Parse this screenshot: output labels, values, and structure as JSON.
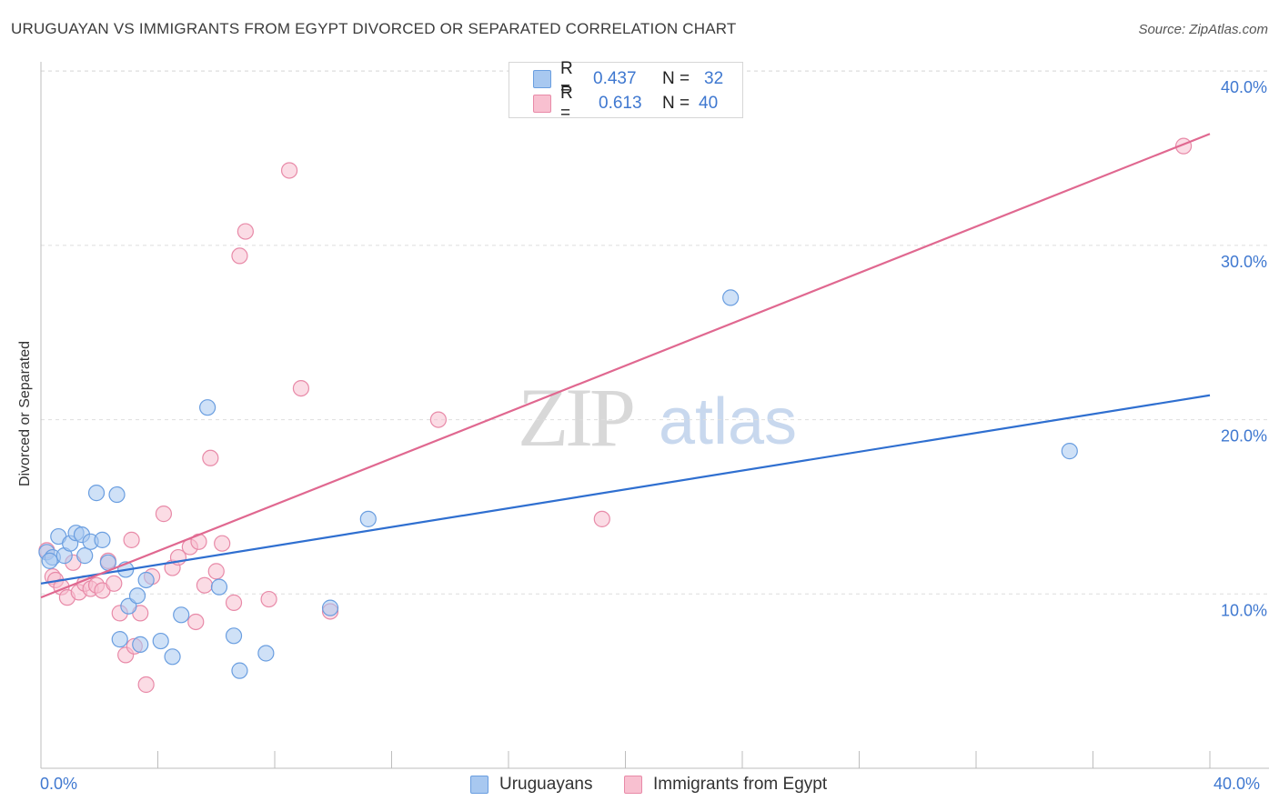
{
  "title": "URUGUAYAN VS IMMIGRANTS FROM EGYPT DIVORCED OR SEPARATED CORRELATION CHART",
  "source": "Source: ZipAtlas.com",
  "watermark": {
    "zip": "ZIP",
    "atlas": "atlas"
  },
  "legend": {
    "rows": [
      {
        "r_label": "R =",
        "r_value": "0.437",
        "n_label": "N =",
        "n_value": "32",
        "color": "#a8c8f0",
        "border": "#6a9ee0"
      },
      {
        "r_label": "R =",
        "r_value": "0.613",
        "n_label": "N =",
        "n_value": "40",
        "color": "#f8c0d0",
        "border": "#e88aa8"
      }
    ]
  },
  "bottom_legend": {
    "uruguayans": "Uruguayans",
    "egypt": "Immigrants from Egypt"
  },
  "x_axis": {
    "left_label": "0.0%",
    "right_label": "40.0%"
  },
  "chart_data": {
    "type": "scatter",
    "title": "URUGUAYAN VS IMMIGRANTS FROM EGYPT DIVORCED OR SEPARATED CORRELATION CHART",
    "xlabel": "",
    "ylabel": "Divorced or Separated",
    "xlim": [
      0,
      40
    ],
    "ylim": [
      0,
      41
    ],
    "y_ticks": [
      {
        "value": 10,
        "label": "10.0%"
      },
      {
        "value": 20,
        "label": "20.0%"
      },
      {
        "value": 30,
        "label": "30.0%"
      },
      {
        "value": 40,
        "label": "40.0%"
      }
    ],
    "series": [
      {
        "name": "Uruguayans",
        "color": "#6a9ee0",
        "fill": "#a8c8f0",
        "line_color": "#2f6fd0",
        "trend": [
          [
            0,
            10.6
          ],
          [
            40,
            21.4
          ]
        ],
        "points": [
          [
            0.2,
            12.4
          ],
          [
            0.4,
            12.1
          ],
          [
            0.6,
            13.3
          ],
          [
            0.8,
            12.2
          ],
          [
            1.0,
            12.9
          ],
          [
            1.2,
            13.5
          ],
          [
            1.4,
            13.4
          ],
          [
            1.5,
            12.2
          ],
          [
            1.7,
            13.0
          ],
          [
            1.9,
            15.8
          ],
          [
            2.1,
            13.1
          ],
          [
            2.3,
            11.8
          ],
          [
            2.6,
            15.7
          ],
          [
            2.7,
            7.4
          ],
          [
            2.9,
            11.4
          ],
          [
            3.0,
            9.3
          ],
          [
            3.3,
            9.9
          ],
          [
            3.4,
            7.1
          ],
          [
            3.6,
            10.8
          ],
          [
            4.1,
            7.3
          ],
          [
            4.5,
            6.4
          ],
          [
            4.8,
            8.8
          ],
          [
            5.7,
            20.7
          ],
          [
            6.1,
            10.4
          ],
          [
            6.6,
            7.6
          ],
          [
            6.8,
            5.6
          ],
          [
            7.7,
            6.6
          ],
          [
            9.9,
            9.2
          ],
          [
            11.2,
            14.3
          ],
          [
            23.6,
            27.0
          ],
          [
            35.2,
            18.2
          ],
          [
            0.3,
            11.9
          ]
        ]
      },
      {
        "name": "Immigrants from Egypt",
        "color": "#e88aa8",
        "fill": "#f8c0d0",
        "line_color": "#e06890",
        "trend": [
          [
            0,
            9.8
          ],
          [
            40,
            36.4
          ]
        ],
        "points": [
          [
            0.2,
            12.5
          ],
          [
            0.4,
            11.0
          ],
          [
            0.5,
            10.8
          ],
          [
            0.7,
            10.4
          ],
          [
            0.9,
            9.8
          ],
          [
            1.1,
            11.8
          ],
          [
            1.3,
            10.1
          ],
          [
            1.5,
            10.6
          ],
          [
            1.7,
            10.3
          ],
          [
            1.9,
            10.5
          ],
          [
            2.1,
            10.2
          ],
          [
            2.3,
            11.9
          ],
          [
            2.5,
            10.6
          ],
          [
            2.7,
            8.9
          ],
          [
            2.9,
            6.5
          ],
          [
            3.1,
            13.1
          ],
          [
            3.2,
            7.0
          ],
          [
            3.4,
            8.9
          ],
          [
            3.6,
            4.8
          ],
          [
            3.8,
            11.0
          ],
          [
            4.2,
            14.6
          ],
          [
            4.5,
            11.5
          ],
          [
            4.7,
            12.1
          ],
          [
            5.1,
            12.7
          ],
          [
            5.3,
            8.4
          ],
          [
            5.4,
            13.0
          ],
          [
            5.6,
            10.5
          ],
          [
            5.8,
            17.8
          ],
          [
            6.0,
            11.3
          ],
          [
            6.2,
            12.9
          ],
          [
            6.6,
            9.5
          ],
          [
            6.8,
            29.4
          ],
          [
            7.0,
            30.8
          ],
          [
            7.8,
            9.7
          ],
          [
            8.5,
            34.3
          ],
          [
            8.9,
            21.8
          ],
          [
            9.9,
            9.0
          ],
          [
            13.6,
            20.0
          ],
          [
            19.2,
            14.3
          ],
          [
            39.1,
            35.7
          ]
        ]
      }
    ]
  }
}
